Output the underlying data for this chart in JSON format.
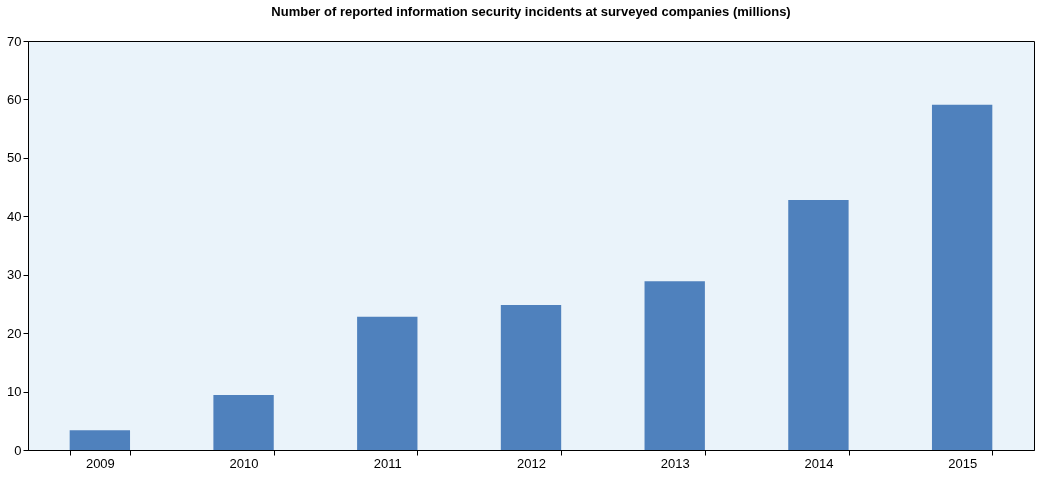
{
  "chart_data": {
    "type": "bar",
    "title": "Number of reported information security incidents at surveyed companies (millions)",
    "categories": [
      "2009",
      "2010",
      "2011",
      "2012",
      "2013",
      "2014",
      "2015"
    ],
    "values": [
      3.4,
      9.4,
      22.8,
      24.8,
      28.9,
      42.8,
      59.1
    ],
    "color": "#4f81bd",
    "ylim": [
      0,
      70
    ],
    "yticks": [
      0,
      10,
      20,
      30,
      40,
      50,
      60,
      70
    ],
    "grid": false
  }
}
